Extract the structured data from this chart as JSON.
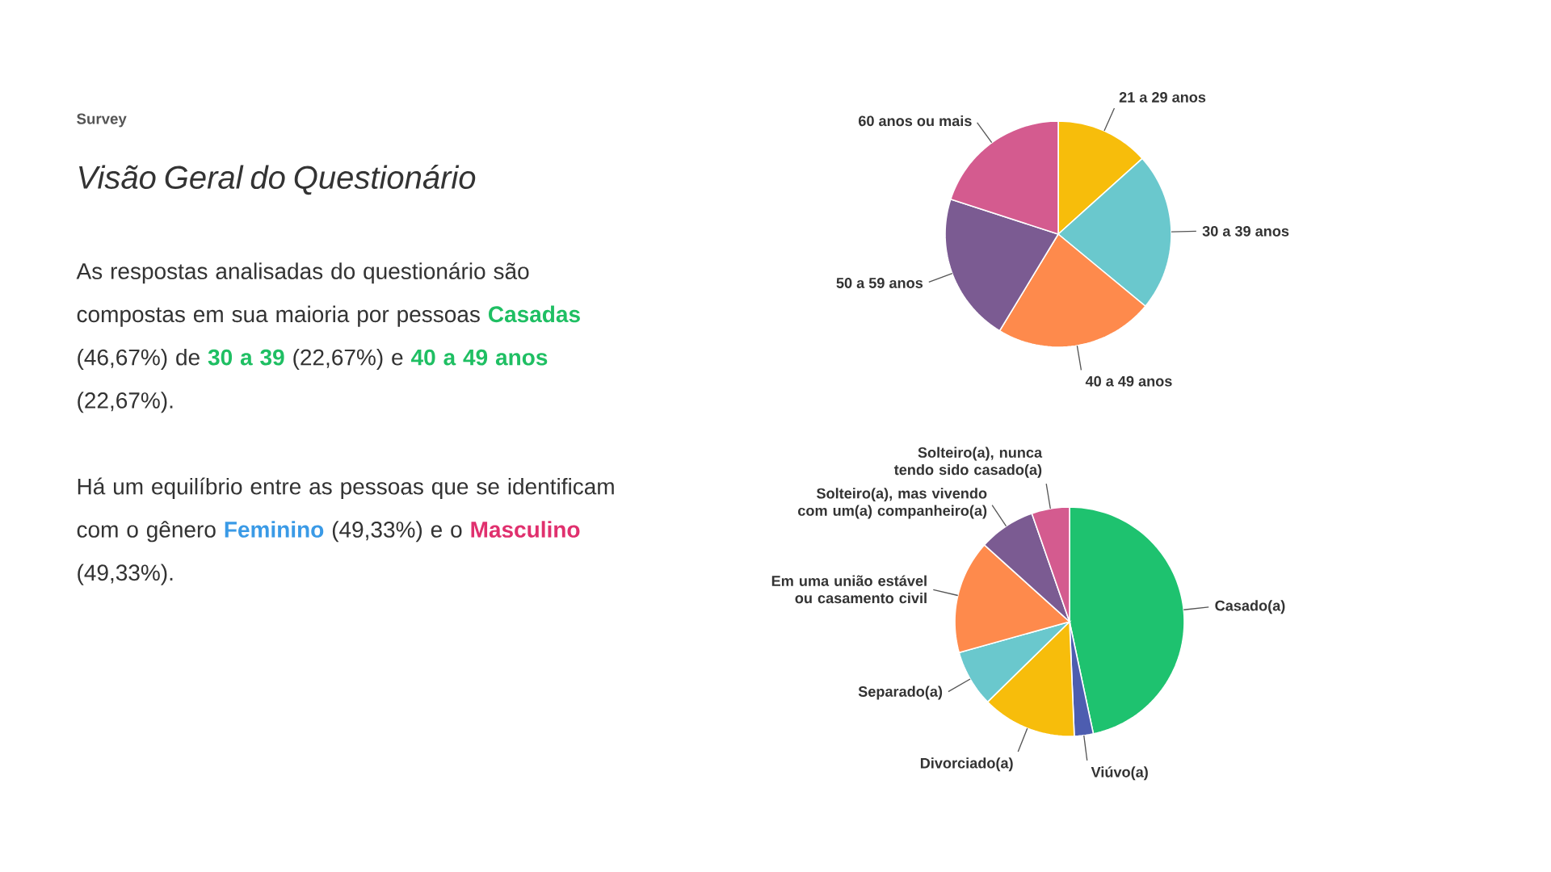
{
  "chart_data": [
    {
      "type": "other",
      "subtitle": "Survey",
      "title": "Visão Geral do Questionário",
      "annotations": [
        "As respostas analisadas do questionário são compostas em sua maioria por pessoas",
        "Casadas",
        "(46,67%) de",
        "30 a 39",
        "(22,67%) e",
        "40 a 49 anos",
        "(22,67%).",
        "Há um equilíbrio entre as pessoas que se identificam com o gênero",
        "Feminino",
        "(49,33%) e o",
        "Masculino",
        "(49,33%)."
      ],
      "colors": [
        null,
        "#1fbf63",
        null,
        "#1fbf63",
        null,
        "#1fbf63",
        null,
        null,
        "#3a9ae6",
        null,
        "#e0306e",
        null
      ]
    },
    {
      "type": "pie",
      "categories": [
        "21 a 29 anos",
        "30 a 39 anos",
        "40 a 49 anos",
        "50 a 59 anos",
        "60 anos ou mais"
      ],
      "values": [
        13.33,
        22.67,
        22.67,
        21.33,
        20
      ],
      "colors": [
        "#f7bd0b",
        "#6ac8cd",
        "#fe8a4c",
        "#7b5b92",
        "#d45b8f"
      ]
    },
    {
      "type": "pie",
      "categories": [
        "Casado(a)",
        "Viúvo(a)",
        "Divorciado(a)",
        "Separado(a)",
        "Em uma união estável ou casamento civil",
        "Solteiro(a), mas vivendo com um(a) companheiro(a)",
        "Solteiro(a), nunca tendo sido casado(a)"
      ],
      "values": [
        46.67,
        2.67,
        13.33,
        8,
        16,
        8,
        5.33
      ],
      "colors": [
        "#1ec26f",
        "#4d5db0",
        "#f7bd0b",
        "#6ac8cd",
        "#fe8a4c",
        "#7b5b92",
        "#d45b8f"
      ]
    }
  ]
}
